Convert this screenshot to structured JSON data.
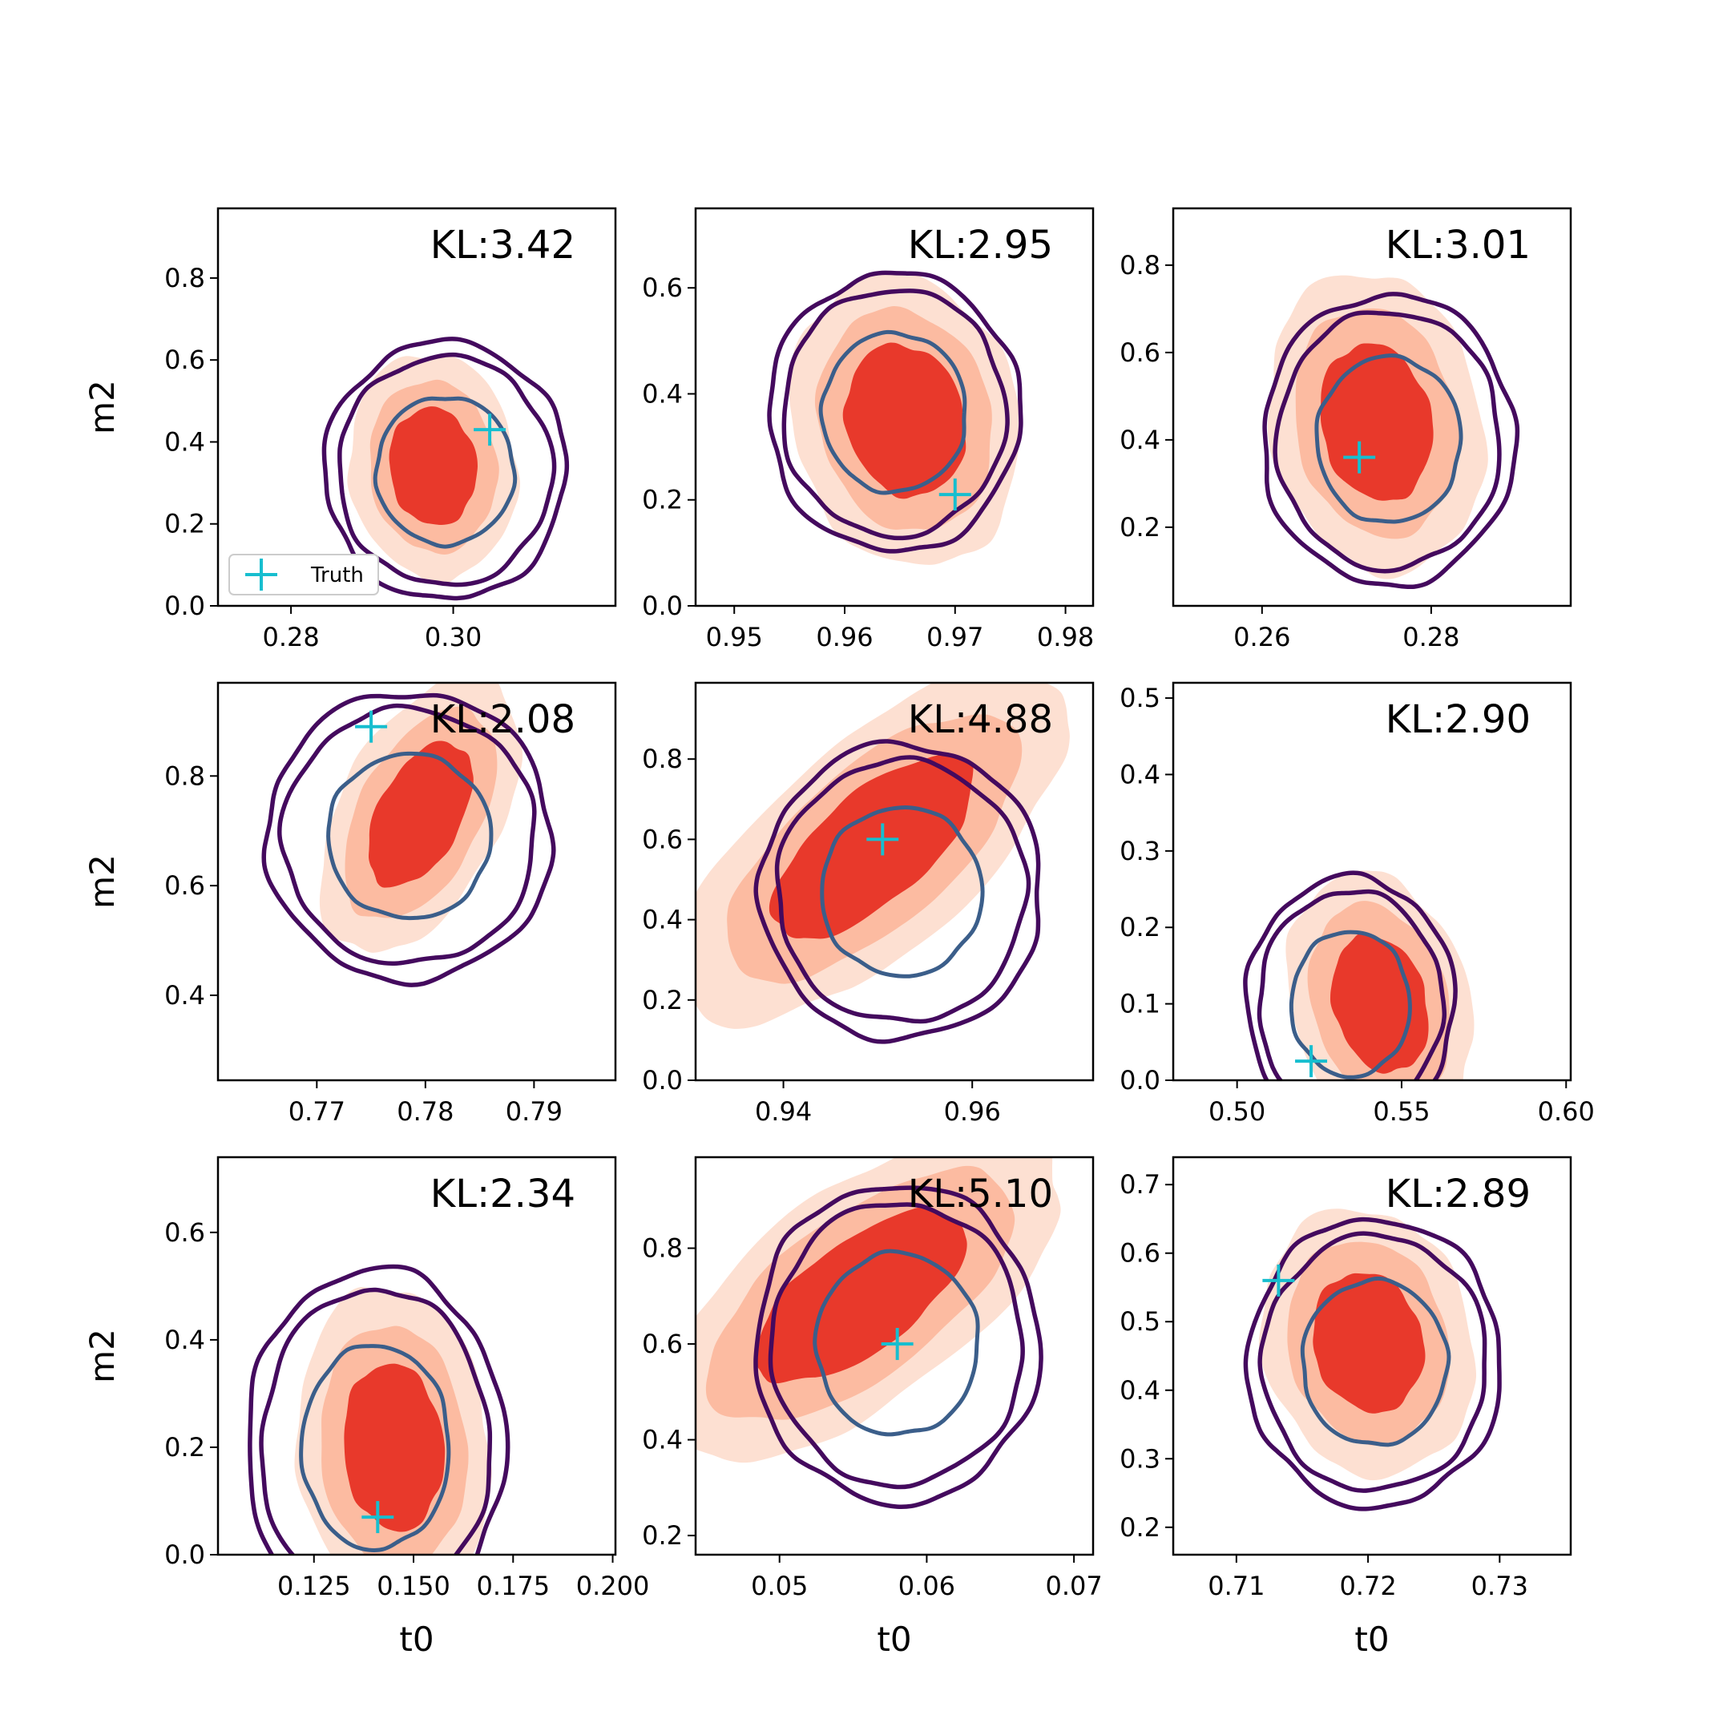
{
  "chart_data": [
    {
      "type": "contour",
      "panel": 1,
      "annotation": "KL:3.42",
      "xlabel": "",
      "ylabel": "m2",
      "xlim": [
        0.271,
        0.32
      ],
      "ylim": [
        0,
        0.97
      ],
      "xticks": [
        0.28,
        0.3
      ],
      "xtick_labels": [
        "0.28",
        "0.30"
      ],
      "yticks": [
        0,
        0.2,
        0.4,
        0.6,
        0.8
      ],
      "ytick_labels": [
        "0.0",
        "0.2",
        "0.4",
        "0.6",
        "0.8"
      ],
      "truth": [
        0.3045,
        0.43
      ],
      "reference_density": {
        "center": [
          0.2975,
          0.34
        ],
        "spread": [
          0.0045,
          0.12
        ]
      },
      "estimate_contours": {
        "center": [
          0.299,
          0.33
        ],
        "spread": [
          0.0085,
          0.18
        ]
      },
      "legend": {
        "label": "Truth",
        "position": "lower-left"
      }
    },
    {
      "type": "contour",
      "panel": 2,
      "annotation": "KL:2.95",
      "xlabel": "",
      "ylabel": "",
      "xlim": [
        0.9465,
        0.9825
      ],
      "ylim": [
        0,
        0.75
      ],
      "xticks": [
        0.95,
        0.96,
        0.97,
        0.98
      ],
      "xtick_labels": [
        "0.95",
        "0.96",
        "0.97",
        "0.98"
      ],
      "yticks": [
        0,
        0.2,
        0.4,
        0.6
      ],
      "ytick_labels": [
        "0.0",
        "0.2",
        "0.4",
        "0.6"
      ],
      "truth": [
        0.97,
        0.21
      ],
      "reference_density": {
        "center": [
          0.9655,
          0.35
        ],
        "spread": [
          0.0045,
          0.12
        ]
      },
      "estimate_contours": {
        "center": [
          0.9645,
          0.365
        ],
        "spread": [
          0.0065,
          0.15
        ]
      }
    },
    {
      "type": "contour",
      "panel": 3,
      "annotation": "KL:3.01",
      "xlabel": "",
      "ylabel": "",
      "xlim": [
        0.2495,
        0.2965
      ],
      "ylim": [
        0.02,
        0.93
      ],
      "xticks": [
        0.26,
        0.28
      ],
      "xtick_labels": [
        "0.26",
        "0.28"
      ],
      "yticks": [
        0.2,
        0.4,
        0.6,
        0.8
      ],
      "ytick_labels": [
        "0.2",
        "0.4",
        "0.6",
        "0.8"
      ],
      "truth": [
        0.2715,
        0.36
      ],
      "reference_density": {
        "center": [
          0.2735,
          0.44
        ],
        "spread": [
          0.0055,
          0.15
        ]
      },
      "estimate_contours": {
        "center": [
          0.275,
          0.4
        ],
        "spread": [
          0.0085,
          0.19
        ]
      }
    },
    {
      "type": "contour",
      "panel": 4,
      "annotation": "KL:2.08",
      "xlabel": "",
      "ylabel": "m2",
      "xlim": [
        0.7609,
        0.7975
      ],
      "ylim": [
        0.245,
        0.97
      ],
      "xticks": [
        0.77,
        0.78,
        0.79
      ],
      "xtick_labels": [
        "0.77",
        "0.78",
        "0.79"
      ],
      "yticks": [
        0.4,
        0.6,
        0.8
      ],
      "ytick_labels": [
        "0.4",
        "0.6",
        "0.8"
      ],
      "truth": [
        0.775,
        0.89
      ],
      "reference_density": {
        "center": [
          0.7795,
          0.73
        ],
        "spread": [
          0.0035,
          0.11
        ]
      },
      "estimate_contours": {
        "center": [
          0.7785,
          0.69
        ],
        "spread": [
          0.0075,
          0.15
        ]
      }
    },
    {
      "type": "contour",
      "panel": 5,
      "annotation": "KL:4.88",
      "xlabel": "",
      "ylabel": "",
      "xlim": [
        0.9307,
        0.9728
      ],
      "ylim": [
        0,
        0.99
      ],
      "xticks": [
        0.94,
        0.96
      ],
      "xtick_labels": [
        "0.94",
        "0.96"
      ],
      "yticks": [
        0,
        0.2,
        0.4,
        0.6,
        0.8
      ],
      "ytick_labels": [
        "0.0",
        "0.2",
        "0.4",
        "0.6",
        "0.8"
      ],
      "truth": [
        0.9505,
        0.6
      ],
      "reference_density": {
        "center": [
          0.9495,
          0.58
        ],
        "spread": [
          0.0065,
          0.19
        ]
      },
      "estimate_contours": {
        "center": [
          0.9525,
          0.47
        ],
        "spread": [
          0.0085,
          0.21
        ]
      }
    },
    {
      "type": "contour",
      "panel": 6,
      "annotation": "KL:2.90",
      "xlabel": "",
      "ylabel": "",
      "xlim": [
        0.4806,
        0.6014
      ],
      "ylim": [
        0,
        0.52
      ],
      "xticks": [
        0.5,
        0.55,
        0.6
      ],
      "xtick_labels": [
        "0.50",
        "0.55",
        "0.60"
      ],
      "yticks": [
        0,
        0.1,
        0.2,
        0.3,
        0.4,
        0.5
      ],
      "ytick_labels": [
        "0.0",
        "0.1",
        "0.2",
        "0.3",
        "0.4",
        "0.5"
      ],
      "truth": [
        0.5225,
        0.025
      ],
      "reference_density": {
        "center": [
          0.5435,
          0.1
        ],
        "spread": [
          0.012,
          0.075
        ]
      },
      "estimate_contours": {
        "center": [
          0.5345,
          0.1
        ],
        "spread": [
          0.018,
          0.095
        ]
      }
    },
    {
      "type": "contour",
      "panel": 7,
      "annotation": "KL:2.34",
      "xlabel": "t0",
      "ylabel": "m2",
      "xlim": [
        0.1009,
        0.2007
      ],
      "ylim": [
        0,
        0.74
      ],
      "xticks": [
        0.125,
        0.15,
        0.175,
        0.2
      ],
      "xtick_labels": [
        "0.125",
        "0.150",
        "0.175",
        "0.200"
      ],
      "yticks": [
        0,
        0.2,
        0.4,
        0.6
      ],
      "ytick_labels": [
        "0.0",
        "0.2",
        "0.4",
        "0.6"
      ],
      "truth": [
        0.141,
        0.07
      ],
      "reference_density": {
        "center": [
          0.145,
          0.2
        ],
        "spread": [
          0.0105,
          0.13
        ]
      },
      "estimate_contours": {
        "center": [
          0.1405,
          0.2
        ],
        "spread": [
          0.0185,
          0.19
        ]
      }
    },
    {
      "type": "contour",
      "panel": 8,
      "annotation": "KL:5.10",
      "xlabel": "t0",
      "ylabel": "",
      "xlim": [
        0.0443,
        0.0713
      ],
      "ylim": [
        0.16,
        0.99
      ],
      "xticks": [
        0.05,
        0.06,
        0.07
      ],
      "xtick_labels": [
        "0.05",
        "0.06",
        "0.07"
      ],
      "yticks": [
        0.2,
        0.4,
        0.6,
        0.8
      ],
      "ytick_labels": [
        "0.2",
        "0.4",
        "0.6",
        "0.8"
      ],
      "truth": [
        0.058,
        0.6
      ],
      "reference_density": {
        "center": [
          0.0555,
          0.7
        ],
        "spread": [
          0.0045,
          0.15
        ]
      },
      "estimate_contours": {
        "center": [
          0.058,
          0.6
        ],
        "spread": [
          0.0055,
          0.19
        ]
      }
    },
    {
      "type": "contour",
      "panel": 9,
      "annotation": "KL:2.89",
      "xlabel": "t0",
      "ylabel": "",
      "xlim": [
        0.7052,
        0.7354
      ],
      "ylim": [
        0.16,
        0.74
      ],
      "xticks": [
        0.71,
        0.72,
        0.73
      ],
      "xtick_labels": [
        "0.71",
        "0.72",
        "0.73"
      ],
      "yticks": [
        0.2,
        0.3,
        0.4,
        0.5,
        0.6,
        0.7
      ],
      "ytick_labels": [
        "0.2",
        "0.3",
        "0.4",
        "0.5",
        "0.6",
        "0.7"
      ],
      "truth": [
        0.7132,
        0.56
      ],
      "reference_density": {
        "center": [
          0.72,
          0.47
        ],
        "spread": [
          0.0035,
          0.085
        ]
      },
      "estimate_contours": {
        "center": [
          0.7205,
          0.44
        ],
        "spread": [
          0.0055,
          0.12
        ]
      }
    }
  ],
  "colors": {
    "density_light": "#fde0d2",
    "density_mid": "#fcbba1",
    "density_dark": "#e8392b",
    "contour_outer": "#440a5e",
    "contour_inner": "#3b5e8a",
    "truth_marker": "#17becf",
    "axes": "#000000",
    "background": "#ffffff"
  }
}
